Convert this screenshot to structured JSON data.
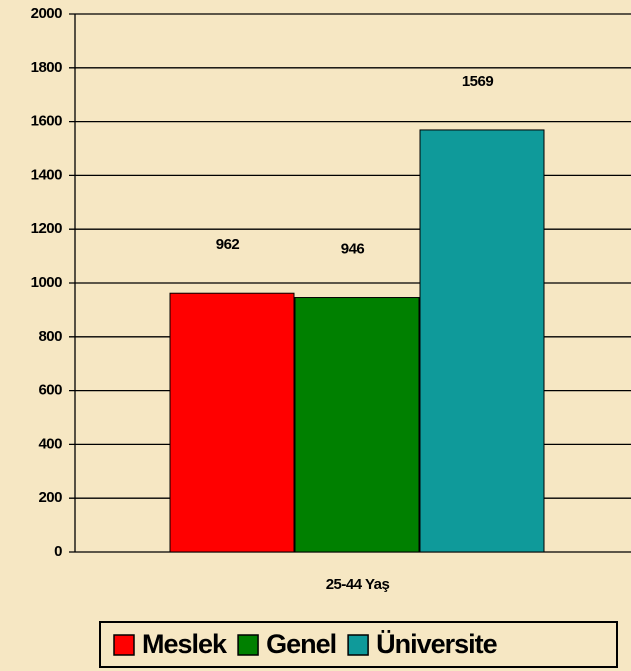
{
  "chart_data": {
    "type": "bar",
    "categories": [
      "25-44 Yaş"
    ],
    "series": [
      {
        "name": "Meslek",
        "color": "#ff0000",
        "values": [
          962
        ]
      },
      {
        "name": "Genel",
        "color": "#008000",
        "values": [
          946
        ]
      },
      {
        "name": "Üniversite",
        "color": "#0f9a9a",
        "values": [
          1569
        ]
      }
    ],
    "ylim": [
      0,
      2000
    ],
    "yticks": [
      0,
      200,
      400,
      600,
      800,
      1000,
      1200,
      1400,
      1600,
      1800,
      2000
    ],
    "grid": true,
    "legend": "bottom"
  }
}
